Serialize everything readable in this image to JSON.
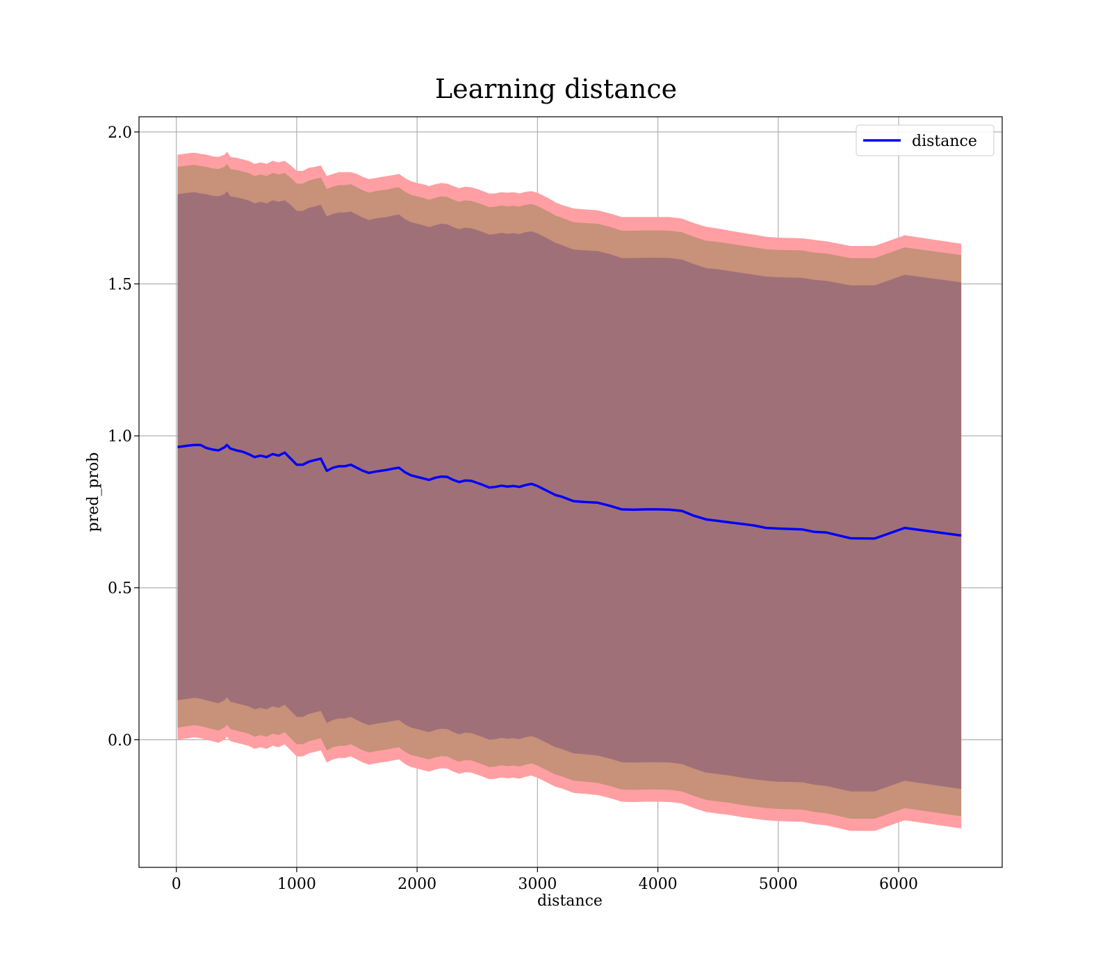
{
  "chart_data": {
    "type": "line",
    "title": "Learning distance",
    "xlabel": "distance",
    "ylabel": "pred_prob",
    "xlim": [
      -310,
      6860
    ],
    "ylim": [
      -0.42,
      2.05
    ],
    "xticks": [
      0,
      1000,
      2000,
      3000,
      4000,
      5000,
      6000
    ],
    "xtick_labels": [
      "0",
      "1000",
      "2000",
      "3000",
      "4000",
      "5000",
      "6000"
    ],
    "yticks": [
      0.0,
      0.5,
      1.0,
      1.5,
      2.0
    ],
    "ytick_labels": [
      "0.0",
      "0.5",
      "1.0",
      "1.5",
      "2.0"
    ],
    "grid": true,
    "legend": {
      "placement": "top-right",
      "entries": [
        {
          "label": "distance",
          "color": "#0000ff"
        }
      ]
    },
    "colors": {
      "line": "#0000ff",
      "band_outer": "#ff9fa3",
      "band_middle": "#c7917a",
      "band_inner": "#a07078"
    },
    "x": [
      10,
      100,
      150,
      200,
      250,
      300,
      350,
      400,
      420,
      450,
      500,
      550,
      600,
      650,
      700,
      750,
      800,
      850,
      900,
      950,
      1000,
      1050,
      1100,
      1150,
      1200,
      1250,
      1300,
      1350,
      1400,
      1450,
      1500,
      1550,
      1600,
      1650,
      1700,
      1750,
      1800,
      1850,
      1900,
      1950,
      2000,
      2050,
      2100,
      2150,
      2200,
      2250,
      2300,
      2350,
      2400,
      2450,
      2500,
      2550,
      2600,
      2650,
      2700,
      2750,
      2800,
      2850,
      2900,
      2950,
      3000,
      3050,
      3100,
      3150,
      3200,
      3300,
      3400,
      3500,
      3600,
      3700,
      3800,
      3900,
      4000,
      4100,
      4200,
      4300,
      4400,
      4500,
      4600,
      4700,
      4800,
      4900,
      5000,
      5200,
      5300,
      5400,
      5600,
      5800,
      6050,
      6520
    ],
    "series": [
      {
        "name": "distance",
        "y": [
          0.963,
          0.968,
          0.97,
          0.97,
          0.96,
          0.955,
          0.952,
          0.962,
          0.97,
          0.958,
          0.952,
          0.948,
          0.94,
          0.93,
          0.935,
          0.93,
          0.94,
          0.935,
          0.945,
          0.925,
          0.905,
          0.905,
          0.915,
          0.92,
          0.925,
          0.885,
          0.895,
          0.9,
          0.9,
          0.905,
          0.895,
          0.885,
          0.878,
          0.882,
          0.885,
          0.888,
          0.892,
          0.895,
          0.88,
          0.87,
          0.865,
          0.86,
          0.855,
          0.862,
          0.866,
          0.865,
          0.855,
          0.848,
          0.853,
          0.852,
          0.845,
          0.838,
          0.83,
          0.832,
          0.836,
          0.833,
          0.835,
          0.832,
          0.838,
          0.842,
          0.835,
          0.825,
          0.815,
          0.805,
          0.8,
          0.785,
          0.782,
          0.78,
          0.77,
          0.758,
          0.757,
          0.758,
          0.758,
          0.757,
          0.753,
          0.737,
          0.725,
          0.72,
          0.715,
          0.71,
          0.705,
          0.697,
          0.695,
          0.692,
          0.684,
          0.682,
          0.663,
          0.662,
          0.697,
          0.672
        ]
      }
    ],
    "bands": [
      {
        "name": "outer",
        "upper": [
          1.925,
          1.93,
          1.932,
          1.928,
          1.925,
          1.92,
          1.918,
          1.925,
          1.935,
          1.918,
          1.915,
          1.91,
          1.905,
          1.895,
          1.9,
          1.895,
          1.905,
          1.9,
          1.905,
          1.89,
          1.872,
          1.872,
          1.882,
          1.885,
          1.89,
          1.855,
          1.862,
          1.868,
          1.868,
          1.868,
          1.862,
          1.852,
          1.845,
          1.848,
          1.852,
          1.855,
          1.858,
          1.862,
          1.848,
          1.838,
          1.832,
          1.828,
          1.822,
          1.828,
          1.832,
          1.83,
          1.822,
          1.815,
          1.82,
          1.818,
          1.812,
          1.805,
          1.797,
          1.798,
          1.802,
          1.8,
          1.802,
          1.798,
          1.803,
          1.805,
          1.8,
          1.79,
          1.78,
          1.768,
          1.76,
          1.748,
          1.745,
          1.742,
          1.732,
          1.72,
          1.72,
          1.72,
          1.72,
          1.72,
          1.715,
          1.7,
          1.688,
          1.682,
          1.675,
          1.668,
          1.662,
          1.655,
          1.652,
          1.65,
          1.645,
          1.64,
          1.625,
          1.625,
          1.66,
          1.632
        ],
        "lower": [
          0.0,
          0.005,
          0.008,
          0.005,
          0.0,
          -0.005,
          -0.01,
          0.0,
          0.01,
          -0.005,
          -0.01,
          -0.015,
          -0.02,
          -0.03,
          -0.025,
          -0.03,
          -0.02,
          -0.025,
          -0.015,
          -0.035,
          -0.055,
          -0.055,
          -0.045,
          -0.04,
          -0.035,
          -0.075,
          -0.065,
          -0.06,
          -0.06,
          -0.055,
          -0.065,
          -0.075,
          -0.082,
          -0.078,
          -0.075,
          -0.072,
          -0.068,
          -0.065,
          -0.08,
          -0.09,
          -0.095,
          -0.1,
          -0.105,
          -0.098,
          -0.094,
          -0.095,
          -0.105,
          -0.112,
          -0.107,
          -0.108,
          -0.115,
          -0.122,
          -0.13,
          -0.128,
          -0.124,
          -0.127,
          -0.125,
          -0.128,
          -0.122,
          -0.118,
          -0.125,
          -0.135,
          -0.145,
          -0.155,
          -0.16,
          -0.175,
          -0.178,
          -0.182,
          -0.192,
          -0.204,
          -0.205,
          -0.204,
          -0.204,
          -0.205,
          -0.21,
          -0.225,
          -0.238,
          -0.243,
          -0.248,
          -0.255,
          -0.26,
          -0.265,
          -0.268,
          -0.27,
          -0.278,
          -0.282,
          -0.3,
          -0.3,
          -0.265,
          -0.292
        ]
      },
      {
        "name": "middle",
        "upper": [
          1.885,
          1.89,
          1.892,
          1.888,
          1.885,
          1.88,
          1.878,
          1.885,
          1.895,
          1.878,
          1.875,
          1.87,
          1.865,
          1.855,
          1.86,
          1.855,
          1.865,
          1.86,
          1.865,
          1.85,
          1.83,
          1.83,
          1.84,
          1.845,
          1.85,
          1.812,
          1.82,
          1.825,
          1.825,
          1.828,
          1.818,
          1.808,
          1.8,
          1.805,
          1.808,
          1.81,
          1.815,
          1.818,
          1.803,
          1.793,
          1.788,
          1.783,
          1.777,
          1.783,
          1.788,
          1.786,
          1.777,
          1.77,
          1.775,
          1.773,
          1.767,
          1.76,
          1.752,
          1.754,
          1.758,
          1.755,
          1.757,
          1.754,
          1.76,
          1.763,
          1.756,
          1.746,
          1.736,
          1.725,
          1.718,
          1.703,
          1.7,
          1.698,
          1.688,
          1.675,
          1.675,
          1.676,
          1.676,
          1.675,
          1.67,
          1.655,
          1.642,
          1.638,
          1.632,
          1.626,
          1.62,
          1.614,
          1.612,
          1.61,
          1.603,
          1.6,
          1.585,
          1.585,
          1.62,
          1.595
        ],
        "lower": [
          0.04,
          0.045,
          0.048,
          0.045,
          0.04,
          0.035,
          0.03,
          0.04,
          0.05,
          0.035,
          0.03,
          0.025,
          0.02,
          0.01,
          0.015,
          0.01,
          0.02,
          0.015,
          0.025,
          0.005,
          -0.015,
          -0.015,
          -0.005,
          0.0,
          0.005,
          -0.035,
          -0.025,
          -0.02,
          -0.02,
          -0.015,
          -0.025,
          -0.035,
          -0.042,
          -0.038,
          -0.035,
          -0.032,
          -0.028,
          -0.025,
          -0.04,
          -0.05,
          -0.055,
          -0.06,
          -0.065,
          -0.058,
          -0.054,
          -0.055,
          -0.065,
          -0.072,
          -0.067,
          -0.068,
          -0.075,
          -0.082,
          -0.09,
          -0.088,
          -0.084,
          -0.087,
          -0.085,
          -0.088,
          -0.082,
          -0.078,
          -0.085,
          -0.095,
          -0.105,
          -0.115,
          -0.12,
          -0.135,
          -0.138,
          -0.142,
          -0.152,
          -0.164,
          -0.165,
          -0.164,
          -0.164,
          -0.165,
          -0.17,
          -0.185,
          -0.198,
          -0.203,
          -0.208,
          -0.215,
          -0.22,
          -0.225,
          -0.228,
          -0.23,
          -0.238,
          -0.242,
          -0.26,
          -0.26,
          -0.225,
          -0.252
        ]
      },
      {
        "name": "inner",
        "upper": [
          1.795,
          1.8,
          1.802,
          1.798,
          1.795,
          1.79,
          1.788,
          1.795,
          1.805,
          1.788,
          1.785,
          1.78,
          1.775,
          1.765,
          1.77,
          1.765,
          1.775,
          1.77,
          1.775,
          1.76,
          1.74,
          1.74,
          1.75,
          1.755,
          1.76,
          1.722,
          1.73,
          1.735,
          1.735,
          1.738,
          1.728,
          1.718,
          1.71,
          1.715,
          1.718,
          1.72,
          1.725,
          1.728,
          1.713,
          1.703,
          1.698,
          1.693,
          1.687,
          1.693,
          1.698,
          1.696,
          1.687,
          1.68,
          1.685,
          1.683,
          1.677,
          1.67,
          1.662,
          1.664,
          1.668,
          1.665,
          1.667,
          1.664,
          1.67,
          1.673,
          1.666,
          1.656,
          1.646,
          1.635,
          1.628,
          1.613,
          1.61,
          1.608,
          1.598,
          1.585,
          1.585,
          1.586,
          1.586,
          1.585,
          1.58,
          1.565,
          1.552,
          1.548,
          1.542,
          1.536,
          1.53,
          1.524,
          1.522,
          1.52,
          1.513,
          1.51,
          1.495,
          1.495,
          1.53,
          1.505
        ],
        "lower": [
          0.13,
          0.135,
          0.138,
          0.135,
          0.13,
          0.125,
          0.12,
          0.13,
          0.14,
          0.125,
          0.12,
          0.115,
          0.11,
          0.1,
          0.105,
          0.1,
          0.11,
          0.105,
          0.115,
          0.095,
          0.075,
          0.075,
          0.085,
          0.09,
          0.095,
          0.055,
          0.065,
          0.07,
          0.07,
          0.075,
          0.065,
          0.055,
          0.048,
          0.052,
          0.055,
          0.058,
          0.062,
          0.065,
          0.05,
          0.04,
          0.035,
          0.03,
          0.025,
          0.032,
          0.036,
          0.035,
          0.025,
          0.018,
          0.023,
          0.022,
          0.015,
          0.008,
          0.0,
          0.002,
          0.006,
          0.003,
          0.005,
          0.002,
          0.008,
          0.012,
          0.005,
          -0.005,
          -0.015,
          -0.025,
          -0.03,
          -0.045,
          -0.048,
          -0.052,
          -0.062,
          -0.074,
          -0.075,
          -0.074,
          -0.074,
          -0.075,
          -0.08,
          -0.095,
          -0.108,
          -0.113,
          -0.118,
          -0.125,
          -0.13,
          -0.135,
          -0.138,
          -0.14,
          -0.148,
          -0.152,
          -0.17,
          -0.17,
          -0.135,
          -0.162
        ]
      }
    ]
  }
}
